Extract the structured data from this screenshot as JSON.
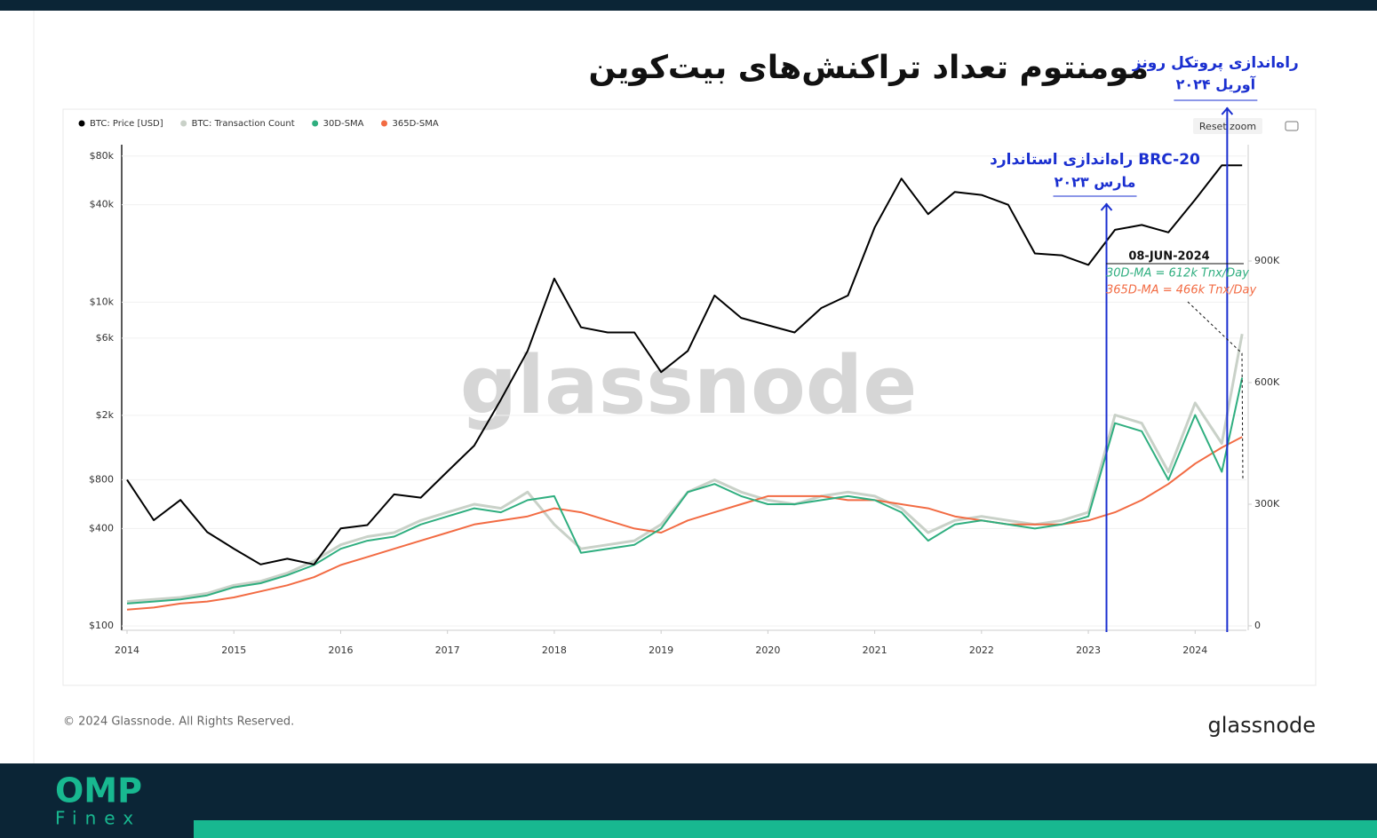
{
  "chart_data": {
    "type": "line",
    "title": "مومنتوم تعداد تراکنش‌های بیت‌کوین",
    "watermark": "glassnode",
    "reset_zoom": "Reset zoom",
    "copyright": "© 2024 Glassnode. All Rights Reserved.",
    "source_logo": "glassnode",
    "brand": [
      "OMP",
      "Finex"
    ],
    "log_scale": true,
    "legend": "top-left",
    "x": [
      2014,
      2014.25,
      2014.5,
      2014.75,
      2015,
      2015.25,
      2015.5,
      2015.75,
      2016,
      2016.25,
      2016.5,
      2016.75,
      2017,
      2017.25,
      2017.5,
      2017.75,
      2018,
      2018.25,
      2018.5,
      2018.75,
      2019,
      2019.25,
      2019.5,
      2019.75,
      2020,
      2020.25,
      2020.5,
      2020.75,
      2021,
      2021.25,
      2021.5,
      2021.75,
      2022,
      2022.25,
      2022.5,
      2022.75,
      2023,
      2023.25,
      2023.5,
      2023.75,
      2024,
      2024.25,
      2024.44
    ],
    "xlim": [
      2013.95,
      2024.48
    ],
    "xticks": [
      2014,
      2015,
      2016,
      2017,
      2018,
      2019,
      2020,
      2021,
      2022,
      2023,
      2024
    ],
    "ylim": [
      94,
      94000
    ],
    "yticks": [
      {
        "value": 100,
        "label": "$100"
      },
      {
        "value": 400,
        "label": "$400"
      },
      {
        "value": 800,
        "label": "$800"
      },
      {
        "value": 2000,
        "label": "$2k"
      },
      {
        "value": 6000,
        "label": "$6k"
      },
      {
        "value": 10000,
        "label": "$10k"
      },
      {
        "value": 40000,
        "label": "$40k"
      },
      {
        "value": 80000,
        "label": "$80k"
      }
    ],
    "y2lim": [
      -11000,
      1187000
    ],
    "y2ticks": [
      0,
      {
        "value": 300000,
        "label": "300K"
      },
      {
        "value": 600000,
        "label": "600K"
      },
      {
        "value": 900000,
        "label": "900K"
      }
    ],
    "series": [
      {
        "name": "BTC: Transaction Count",
        "color": "#c9d1c8",
        "axis": "y2",
        "values": [
          60000,
          65000,
          70000,
          80000,
          100000,
          110000,
          130000,
          160000,
          200000,
          220000,
          230000,
          260000,
          280000,
          300000,
          290000,
          330000,
          250000,
          190000,
          200000,
          210000,
          250000,
          330000,
          360000,
          330000,
          310000,
          300000,
          320000,
          330000,
          320000,
          290000,
          230000,
          260000,
          270000,
          260000,
          250000,
          260000,
          280000,
          520000,
          500000,
          380000,
          550000,
          450000,
          720000
        ]
      },
      {
        "name": "365D-SMA",
        "color": "#f26b43",
        "axis": "y2",
        "values": [
          40000,
          45000,
          55000,
          60000,
          70000,
          85000,
          100000,
          120000,
          150000,
          170000,
          190000,
          210000,
          230000,
          250000,
          260000,
          270000,
          290000,
          280000,
          260000,
          240000,
          230000,
          260000,
          280000,
          300000,
          320000,
          320000,
          320000,
          310000,
          310000,
          300000,
          290000,
          270000,
          260000,
          250000,
          250000,
          250000,
          260000,
          280000,
          310000,
          350000,
          400000,
          440000,
          466000
        ]
      },
      {
        "name": "30D-SMA",
        "color": "#2fae7f",
        "axis": "y2",
        "values": [
          55000,
          60000,
          65000,
          75000,
          95000,
          105000,
          125000,
          150000,
          190000,
          210000,
          220000,
          250000,
          270000,
          290000,
          280000,
          310000,
          320000,
          180000,
          190000,
          200000,
          240000,
          330000,
          350000,
          320000,
          300000,
          300000,
          310000,
          320000,
          310000,
          280000,
          210000,
          250000,
          260000,
          250000,
          240000,
          250000,
          270000,
          500000,
          480000,
          360000,
          520000,
          380000,
          612000
        ]
      },
      {
        "name": "BTC: Price [USD]",
        "color": "#000000",
        "axis": "y",
        "values": [
          800,
          450,
          600,
          380,
          300,
          240,
          260,
          240,
          400,
          420,
          650,
          620,
          900,
          1300,
          2500,
          5000,
          14000,
          7000,
          6500,
          6500,
          3700,
          5000,
          11000,
          8000,
          7200,
          6500,
          9200,
          11000,
          29000,
          58000,
          35000,
          48000,
          46000,
          40000,
          20000,
          19500,
          17000,
          28000,
          30000,
          27000,
          43000,
          70000,
          70000
        ]
      }
    ],
    "annotations": [
      {
        "x": 2023.17,
        "lines": [
          "راه‌اندازی استاندارد BRC-20",
          "مارس ۲۰۲۳"
        ]
      },
      {
        "x": 2024.3,
        "lines": [
          "راه‌اندازی پروتکل رونز",
          "آوریل ۲۰۲۴"
        ]
      }
    ],
    "callout": [
      "08-JUN-2024",
      "30D-MA = 612k Tnx/Day",
      "365D-MA = 466k Tnx/Day"
    ]
  }
}
